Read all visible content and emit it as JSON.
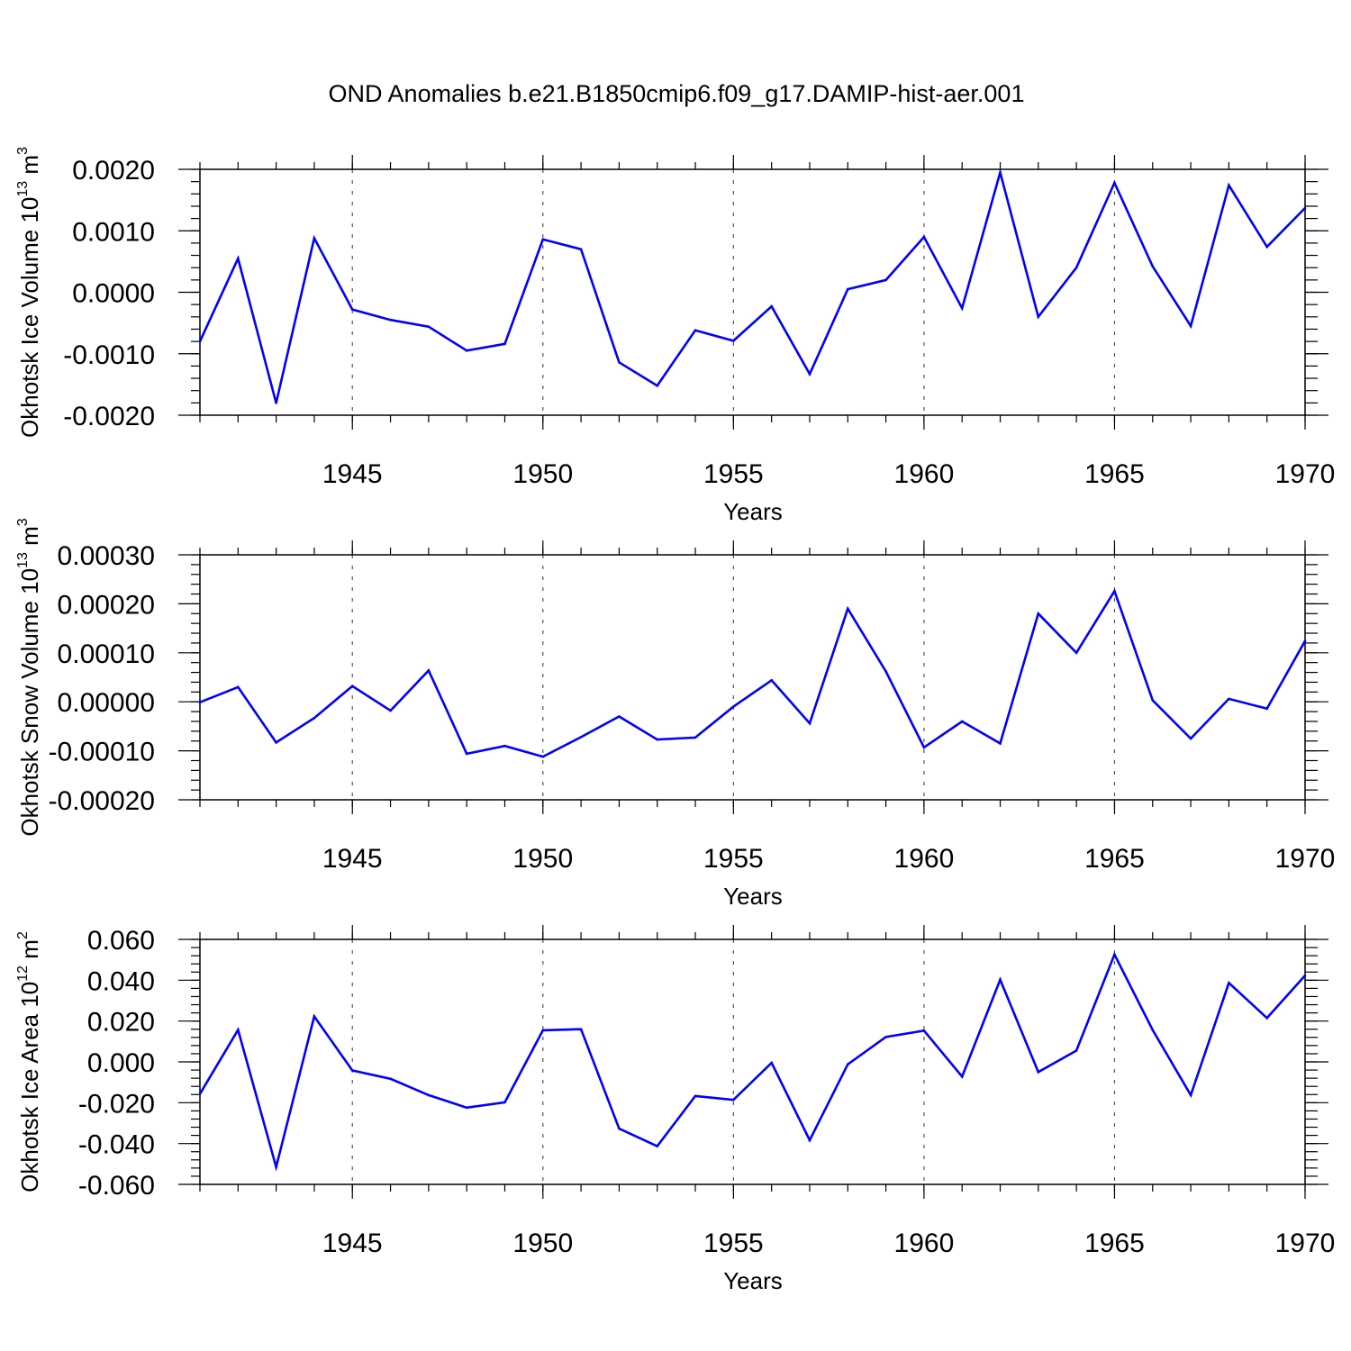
{
  "figure": {
    "title": "OND Anomalies b.e21.B1850cmip6.f09_g17.DAMIP-hist-aer.001",
    "line_color": "#0000ff"
  },
  "chart_data": [
    {
      "type": "line",
      "title": "",
      "xlabel": "Years",
      "ylabel": "Okhotsk Ice Volume 10",
      "ylabel_exp": "13",
      "ylabel_unit": " m",
      "ylabel_unit_exp": "3",
      "xlim": [
        1941,
        1970
      ],
      "ylim": [
        -0.002,
        0.002
      ],
      "xticks": [
        1945,
        1950,
        1955,
        1960,
        1965,
        1970
      ],
      "xtick_labels": [
        "1945",
        "1950",
        "1955",
        "1960",
        "1965",
        "1970"
      ],
      "yticks": [
        -0.002,
        -0.001,
        0.0,
        0.001,
        0.002
      ],
      "ytick_labels": [
        "-0.0020",
        "-0.0010",
        "0.0000",
        "0.0010",
        "0.0020"
      ],
      "ymin_step": 0.0002,
      "grid": "vertical dashed at major x ticks",
      "x": [
        1941,
        1942,
        1943,
        1944,
        1945,
        1946,
        1947,
        1948,
        1949,
        1950,
        1951,
        1952,
        1953,
        1954,
        1955,
        1956,
        1957,
        1958,
        1959,
        1960,
        1961,
        1962,
        1963,
        1964,
        1965,
        1966,
        1967,
        1968,
        1969,
        1970
      ],
      "series": [
        {
          "values": [
            -0.0008,
            0.00055,
            -0.0018,
            0.00088,
            -0.00028,
            -0.00045,
            -0.00056,
            -0.00095,
            -0.00084,
            0.00086,
            0.0007,
            -0.00114,
            -0.00152,
            -0.00062,
            -0.00079,
            -0.00023,
            -0.00133,
            5e-05,
            0.0002,
            0.0009,
            -0.00026,
            0.00195,
            -0.0004,
            0.0004,
            0.00178,
            0.00042,
            -0.00055,
            0.00174,
            0.00074,
            0.00137
          ]
        }
      ]
    },
    {
      "type": "line",
      "title": "",
      "xlabel": "Years",
      "ylabel": "Okhotsk Snow Volume 10",
      "ylabel_exp": "13",
      "ylabel_unit": " m",
      "ylabel_unit_exp": "3",
      "xlim": [
        1941,
        1970
      ],
      "ylim": [
        -0.0002,
        0.0003
      ],
      "xticks": [
        1945,
        1950,
        1955,
        1960,
        1965,
        1970
      ],
      "xtick_labels": [
        "1945",
        "1950",
        "1955",
        "1960",
        "1965",
        "1970"
      ],
      "yticks": [
        -0.0002,
        -0.0001,
        0.0,
        0.0001,
        0.0002,
        0.0003
      ],
      "ytick_labels": [
        "-0.00020",
        "-0.00010",
        "0.00000",
        "0.00010",
        "0.00020",
        "0.00030"
      ],
      "ymin_step": 2e-05,
      "grid": "vertical dashed at major x ticks",
      "x": [
        1941,
        1942,
        1943,
        1944,
        1945,
        1946,
        1947,
        1948,
        1949,
        1950,
        1951,
        1952,
        1953,
        1954,
        1955,
        1956,
        1957,
        1958,
        1959,
        1960,
        1961,
        1962,
        1963,
        1964,
        1965,
        1966,
        1967,
        1968,
        1969,
        1970
      ],
      "series": [
        {
          "values": [
            -1e-06,
            3e-05,
            -8.3e-05,
            -3.3e-05,
            3.2e-05,
            -1.8e-05,
            6.4e-05,
            -0.000106,
            -9e-05,
            -0.000112,
            -7.2e-05,
            -3e-05,
            -7.7e-05,
            -7.3e-05,
            -1e-05,
            4.4e-05,
            -4.4e-05,
            0.00019,
            6.2e-05,
            -9.3e-05,
            -4e-05,
            -8.5e-05,
            0.00018,
            0.0001,
            0.000226,
            3e-06,
            -7.5e-05,
            6e-06,
            -1.4e-05,
            0.000124
          ]
        }
      ]
    },
    {
      "type": "line",
      "title": "",
      "xlabel": "Years",
      "ylabel": "Okhotsk Ice Area 10",
      "ylabel_exp": "12",
      "ylabel_unit": " m",
      "ylabel_unit_exp": "2",
      "xlim": [
        1941,
        1970
      ],
      "ylim": [
        -0.06,
        0.06
      ],
      "xticks": [
        1945,
        1950,
        1955,
        1960,
        1965,
        1970
      ],
      "xtick_labels": [
        "1945",
        "1950",
        "1955",
        "1960",
        "1965",
        "1970"
      ],
      "yticks": [
        -0.06,
        -0.04,
        -0.02,
        0.0,
        0.02,
        0.04,
        0.06
      ],
      "ytick_labels": [
        "-0.060",
        "-0.040",
        "-0.020",
        "0.000",
        "0.020",
        "0.040",
        "0.060"
      ],
      "ymin_step": 0.004,
      "grid": "vertical dashed at major x ticks",
      "x": [
        1941,
        1942,
        1943,
        1944,
        1945,
        1946,
        1947,
        1948,
        1949,
        1950,
        1951,
        1952,
        1953,
        1954,
        1955,
        1956,
        1957,
        1958,
        1959,
        1960,
        1961,
        1962,
        1963,
        1964,
        1965,
        1966,
        1967,
        1968,
        1969,
        1970
      ],
      "series": [
        {
          "values": [
            -0.0157,
            0.0157,
            -0.0515,
            0.0223,
            -0.0042,
            -0.0083,
            -0.0163,
            -0.0224,
            -0.0198,
            0.0155,
            0.016,
            -0.0327,
            -0.0413,
            -0.0167,
            -0.0186,
            -0.0005,
            -0.0384,
            -0.0012,
            0.0122,
            0.0153,
            -0.0072,
            0.0403,
            -0.005,
            0.0055,
            0.0526,
            0.0156,
            -0.0163,
            0.0387,
            0.0215,
            0.0423
          ]
        }
      ]
    }
  ]
}
